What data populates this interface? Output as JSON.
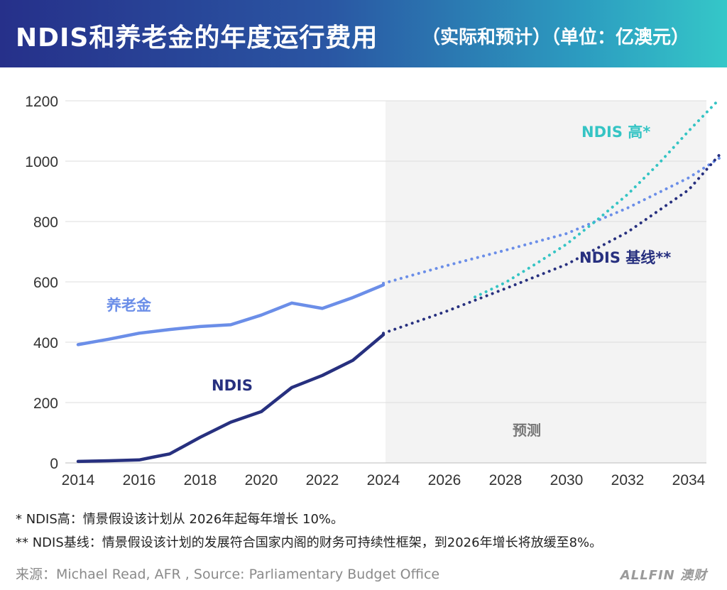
{
  "header": {
    "title": "NDIS和养老金的年度运行费用",
    "subtitle": "（实际和预计）（单位：亿澳元）"
  },
  "chart_data": {
    "type": "line",
    "title": "NDIS和养老金的年度运行费用",
    "subtitle": "（实际和预计）（单位：亿澳元）",
    "xlabel": "",
    "ylabel": "",
    "xlim": [
      2014,
      2035
    ],
    "ylim": [
      0,
      1200
    ],
    "x_ticks": [
      "2014",
      "2016",
      "2018",
      "2020",
      "2022",
      "2024",
      "2026",
      "2028",
      "2030",
      "2032",
      "2034"
    ],
    "y_ticks": [
      "0",
      "200",
      "400",
      "600",
      "800",
      "1000",
      "1200"
    ],
    "grid": "horizontal",
    "forecast_start": 2024,
    "forecast_label": "预测",
    "series": [
      {
        "name": "养老金",
        "style": "solid",
        "color": "#6b8ee8",
        "x": [
          2014,
          2015,
          2016,
          2017,
          2018,
          2019,
          2020,
          2021,
          2022,
          2023,
          2024
        ],
        "y": [
          392,
          410,
          430,
          442,
          452,
          458,
          490,
          530,
          512,
          548,
          590
        ]
      },
      {
        "name": "养老金",
        "style": "dotted",
        "color": "#6b8ee8",
        "x": [
          2024,
          2026,
          2028,
          2030,
          2032,
          2034,
          2035
        ],
        "y": [
          595,
          652,
          705,
          760,
          845,
          945,
          1010
        ]
      },
      {
        "name": "NDIS",
        "style": "solid",
        "color": "#27307f",
        "x": [
          2014,
          2015,
          2016,
          2016.5,
          2017,
          2018,
          2019,
          2020,
          2021,
          2022,
          2023,
          2024
        ],
        "y": [
          5,
          7,
          10,
          20,
          30,
          85,
          135,
          170,
          250,
          290,
          340,
          425
        ]
      },
      {
        "name": "NDIS 基线**",
        "style": "dotted",
        "color": "#27307f",
        "x": [
          2024,
          2026,
          2028,
          2030,
          2032,
          2034,
          2035
        ],
        "y": [
          430,
          500,
          578,
          658,
          765,
          905,
          1020
        ]
      },
      {
        "name": "NDIS 高*",
        "style": "dotted",
        "color": "#35c4c4",
        "x": [
          2027,
          2028,
          2029,
          2030,
          2031,
          2032,
          2033,
          2034,
          2035
        ],
        "y": [
          550,
          598,
          660,
          725,
          805,
          890,
          990,
          1100,
          1205
        ]
      }
    ],
    "annotations": [
      "养老金",
      "NDIS",
      "NDIS 基线**",
      "NDIS 高*"
    ]
  },
  "footnotes": {
    "high": "* NDIS高：情景假设该计划从 2026年起每年增长 10%。",
    "baseline": "** NDIS基线：情景假设该计划的发展符合国家内阁的财务可持续性框架，到2026年增长将放缓至8%。"
  },
  "source": "来源：Michael Read, AFR , Source: Parliamentary Budget Office",
  "brand": "ALLFIN 澳财"
}
